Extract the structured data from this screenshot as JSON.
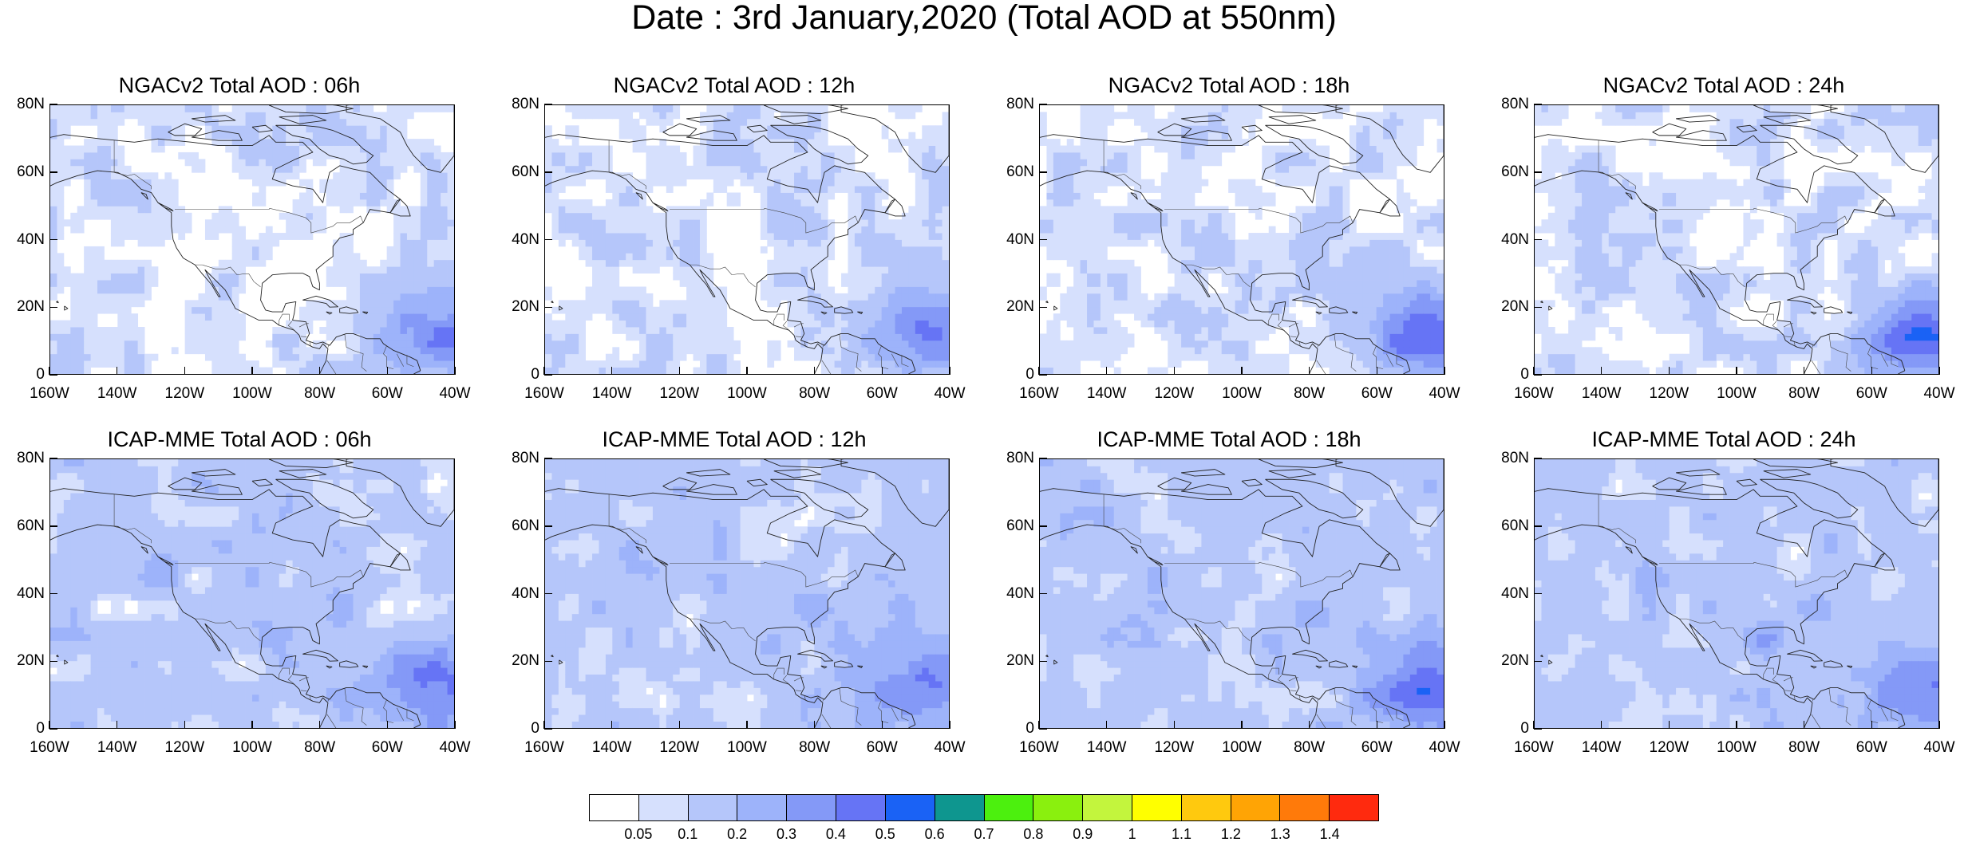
{
  "figure_title": "Date : 3rd January,2020 (Total AOD at 550nm)",
  "panels": [
    {
      "title": "NGACv2 Total AOD : 06h"
    },
    {
      "title": "NGACv2 Total AOD : 12h"
    },
    {
      "title": "NGACv2 Total AOD : 18h"
    },
    {
      "title": "NGACv2 Total AOD : 24h"
    },
    {
      "title": "ICAP-MME Total AOD : 06h"
    },
    {
      "title": "ICAP-MME Total AOD : 12h"
    },
    {
      "title": "ICAP-MME Total AOD : 18h"
    },
    {
      "title": "ICAP-MME Total AOD : 24h"
    }
  ],
  "lat_labels": [
    "80N",
    "60N",
    "40N",
    "20N",
    "0"
  ],
  "lon_labels": [
    "160W",
    "140W",
    "120W",
    "100W",
    "80W",
    "60W",
    "40W"
  ],
  "colorbar": {
    "labels": [
      "0.05",
      "0.1",
      "0.2",
      "0.3",
      "0.4",
      "0.5",
      "0.6",
      "0.7",
      "0.8",
      "0.9",
      "1",
      "1.1",
      "1.2",
      "1.3",
      "1.4"
    ],
    "colors": [
      "#ffffff",
      "#d6e0fd",
      "#b5c6fa",
      "#9db3fa",
      "#8499f7",
      "#6674f5",
      "#1a62f5",
      "#0e968f",
      "#4cf00e",
      "#8af00e",
      "#c3f53d",
      "#ffff00",
      "#ffc90e",
      "#ffa405",
      "#ff7a0a",
      "#ff2a0e"
    ]
  }
}
